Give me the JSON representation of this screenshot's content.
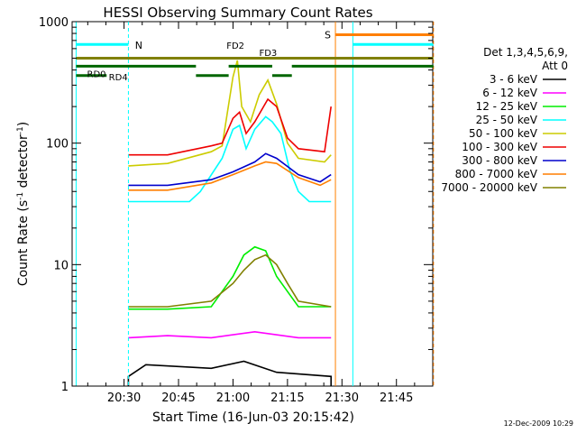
{
  "chart_data": {
    "type": "line",
    "title": "HESSI Observing Summary Count Rates",
    "xlabel": "Start Time (16-Jun-03 20:15:42)",
    "ylabel_main": "Count Rate (s",
    "ylabel_sup1": "-1",
    "ylabel_mid": " detector",
    "ylabel_sup2": "-1",
    "ylabel_end": ")",
    "ylog": true,
    "ylim": [
      1,
      1000
    ],
    "xlim": [
      "20:15:42",
      "21:55:00"
    ],
    "x_ticks": [
      "20:30",
      "20:45",
      "21:00",
      "21:15",
      "21:30",
      "21:45"
    ],
    "y_ticks": [
      "1",
      "10",
      "100",
      "1000"
    ],
    "timestamp": "12-Dec-2009 10:29",
    "legend": {
      "header1": "Det 1,3,4,5,6,9,",
      "header2": "Att 0",
      "entries": [
        {
          "label": "3 - 6 keV",
          "color": "#000000"
        },
        {
          "label": "6 - 12 keV",
          "color": "#ff00ff"
        },
        {
          "label": "12 - 25 keV",
          "color": "#00ee00"
        },
        {
          "label": "25 - 50 keV",
          "color": "#00ffff"
        },
        {
          "label": "50 - 100 keV",
          "color": "#cccc00"
        },
        {
          "label": "100 - 300 keV",
          "color": "#ee0000"
        },
        {
          "label": "300 - 800 keV",
          "color": "#0000cc"
        },
        {
          "label": "800 - 7000 keV",
          "color": "#ff7f00"
        },
        {
          "label": "7000 - 20000 keV",
          "color": "#808000"
        }
      ]
    },
    "flags": {
      "N_label": "N",
      "S_label": "S",
      "RD0_label": "RD0",
      "RD4_label": "RD4",
      "FD2_label": "FD2",
      "FD3_label": "FD3",
      "color_night": "#00ffff",
      "color_saa": "#ff7f00",
      "color_flag": "#808000",
      "color_rd": "#006600"
    },
    "series": [
      {
        "color": "#000000",
        "points": [
          [
            20.52,
            1
          ],
          [
            20.52,
            1.2
          ],
          [
            20.6,
            1.5
          ],
          [
            20.9,
            1.4
          ],
          [
            21.05,
            1.6
          ],
          [
            21.2,
            1.3
          ],
          [
            21.45,
            1.2
          ],
          [
            21.45,
            1
          ]
        ]
      },
      {
        "color": "#ff00ff",
        "points": [
          [
            20.52,
            2.5
          ],
          [
            20.7,
            2.6
          ],
          [
            20.9,
            2.5
          ],
          [
            21.1,
            2.8
          ],
          [
            21.3,
            2.5
          ],
          [
            21.45,
            2.5
          ]
        ]
      },
      {
        "color": "#00ee00",
        "points": [
          [
            20.52,
            4.3
          ],
          [
            20.7,
            4.3
          ],
          [
            20.9,
            4.5
          ],
          [
            21.0,
            8
          ],
          [
            21.05,
            12
          ],
          [
            21.1,
            14
          ],
          [
            21.15,
            13
          ],
          [
            21.2,
            8
          ],
          [
            21.3,
            4.5
          ],
          [
            21.45,
            4.5
          ]
        ]
      },
      {
        "color": "#00ffff",
        "points": [
          [
            20.52,
            33
          ],
          [
            20.65,
            33
          ],
          [
            20.8,
            33
          ],
          [
            20.85,
            40
          ],
          [
            20.95,
            75
          ],
          [
            21.0,
            130
          ],
          [
            21.03,
            140
          ],
          [
            21.06,
            90
          ],
          [
            21.1,
            130
          ],
          [
            21.15,
            165
          ],
          [
            21.18,
            150
          ],
          [
            21.22,
            120
          ],
          [
            21.26,
            60
          ],
          [
            21.3,
            40
          ],
          [
            21.35,
            33
          ],
          [
            21.45,
            33
          ]
        ]
      },
      {
        "color": "#cccc00",
        "points": [
          [
            20.52,
            65
          ],
          [
            20.7,
            68
          ],
          [
            20.9,
            85
          ],
          [
            20.95,
            95
          ],
          [
            21.0,
            350
          ],
          [
            21.02,
            480
          ],
          [
            21.04,
            200
          ],
          [
            21.08,
            150
          ],
          [
            21.12,
            250
          ],
          [
            21.16,
            330
          ],
          [
            21.2,
            210
          ],
          [
            21.25,
            100
          ],
          [
            21.3,
            75
          ],
          [
            21.42,
            70
          ],
          [
            21.45,
            80
          ]
        ]
      },
      {
        "color": "#ee0000",
        "points": [
          [
            20.52,
            80
          ],
          [
            20.7,
            80
          ],
          [
            20.9,
            95
          ],
          [
            20.95,
            100
          ],
          [
            21.0,
            160
          ],
          [
            21.03,
            180
          ],
          [
            21.06,
            120
          ],
          [
            21.1,
            150
          ],
          [
            21.16,
            230
          ],
          [
            21.2,
            200
          ],
          [
            21.25,
            110
          ],
          [
            21.3,
            90
          ],
          [
            21.42,
            85
          ],
          [
            21.45,
            200
          ]
        ]
      },
      {
        "color": "#0000cc",
        "points": [
          [
            20.52,
            45
          ],
          [
            20.7,
            45
          ],
          [
            20.9,
            50
          ],
          [
            21.0,
            58
          ],
          [
            21.1,
            70
          ],
          [
            21.15,
            82
          ],
          [
            21.2,
            75
          ],
          [
            21.3,
            55
          ],
          [
            21.4,
            48
          ],
          [
            21.45,
            55
          ]
        ]
      },
      {
        "color": "#ff7f00",
        "points": [
          [
            20.52,
            41
          ],
          [
            20.7,
            41
          ],
          [
            20.9,
            47
          ],
          [
            21.0,
            55
          ],
          [
            21.1,
            65
          ],
          [
            21.15,
            70
          ],
          [
            21.2,
            68
          ],
          [
            21.3,
            52
          ],
          [
            21.4,
            45
          ],
          [
            21.45,
            50
          ]
        ]
      },
      {
        "color": "#808000",
        "points": [
          [
            20.52,
            4.5
          ],
          [
            20.7,
            4.5
          ],
          [
            20.9,
            5
          ],
          [
            21.0,
            7
          ],
          [
            21.05,
            9
          ],
          [
            21.1,
            11
          ],
          [
            21.15,
            12
          ],
          [
            21.2,
            10
          ],
          [
            21.25,
            7
          ],
          [
            21.3,
            5
          ],
          [
            21.45,
            4.5
          ]
        ]
      }
    ]
  }
}
